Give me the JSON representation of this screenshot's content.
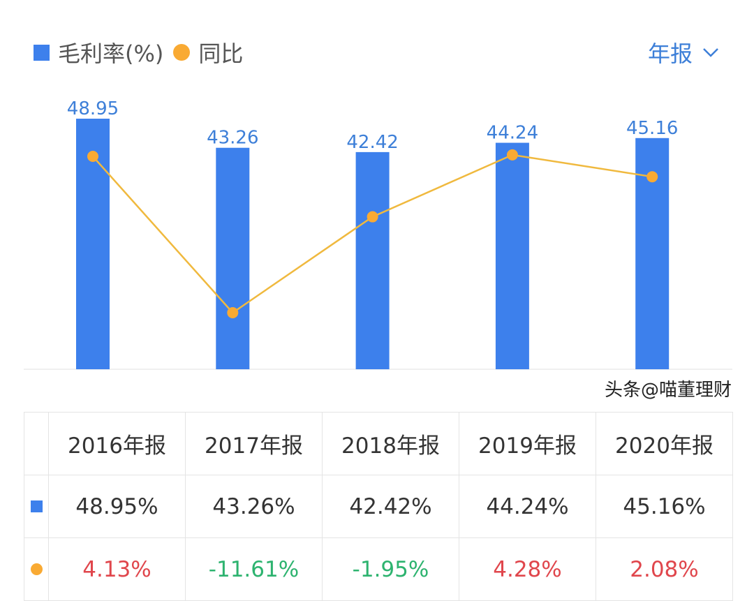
{
  "legend": {
    "bar_label": "毛利率(%)",
    "line_label": "同比"
  },
  "period_selector": {
    "label": "年报",
    "icon": "chevron-down-icon"
  },
  "colors": {
    "bar": "#3d80ec",
    "line": "#f0b93e",
    "dot": "#f9aa33",
    "positive": "#e0464c",
    "negative": "#2db36f",
    "bar_label": "#3d7fd8"
  },
  "chart_data": {
    "type": "bar+line",
    "categories": [
      "2016年报",
      "2017年报",
      "2018年报",
      "2019年报",
      "2020年报"
    ],
    "series": [
      {
        "name": "毛利率(%)",
        "type": "bar",
        "values": [
          48.95,
          43.26,
          42.42,
          44.24,
          45.16
        ]
      },
      {
        "name": "同比",
        "type": "line",
        "values": [
          4.13,
          -11.61,
          -1.95,
          4.28,
          2.08
        ]
      }
    ],
    "data_labels": [
      "48.95",
      "43.26",
      "42.42",
      "44.24",
      "45.16"
    ],
    "grid": false
  },
  "table": {
    "headers": [
      "2016年报",
      "2017年报",
      "2018年报",
      "2019年报",
      "2020年报"
    ],
    "margin_row": [
      "48.95%",
      "43.26%",
      "42.42%",
      "44.24%",
      "45.16%"
    ],
    "yoy_row": [
      "4.13%",
      "-11.61%",
      "-1.95%",
      "4.28%",
      "2.08%"
    ]
  },
  "watermark": "头条@喵董理财"
}
